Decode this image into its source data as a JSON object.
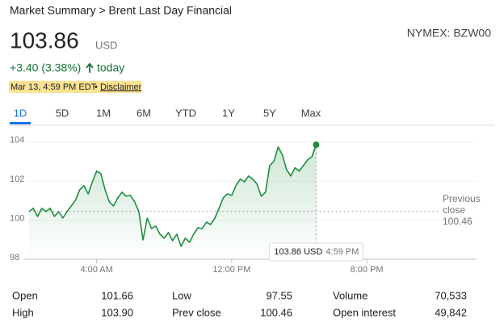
{
  "header": {
    "breadcrumb": "Market Summary > Brent Last Day Financial",
    "price": "103.86",
    "currency": "USD",
    "change": "+3.40 (3.38%)",
    "change_period": "today",
    "timestamp": "Mar 13, 4:59 PM EDT",
    "separator": "•",
    "disclaimer": "Disclaimer",
    "ticker": "NYMEX: BZW00"
  },
  "tabs": [
    "1D",
    "5D",
    "1M",
    "6M",
    "YTD",
    "1Y",
    "5Y",
    "Max"
  ],
  "active_tab": 0,
  "chart_data": {
    "type": "line",
    "color": "#1e8e3e",
    "x": [
      0,
      0.25,
      0.5,
      0.75,
      1,
      1.25,
      1.5,
      1.75,
      2,
      2.25,
      2.5,
      2.75,
      3,
      3.25,
      3.5,
      3.75,
      4,
      4.25,
      4.5,
      4.75,
      5,
      5.25,
      5.5,
      5.75,
      6,
      6.25,
      6.5,
      6.75,
      7,
      7.25,
      7.5,
      7.75,
      8,
      8.25,
      8.5,
      8.75,
      9,
      9.25,
      9.5,
      9.75,
      10,
      10.25,
      10.5,
      10.75,
      11,
      11.25,
      11.5,
      11.75,
      12,
      12.25,
      12.5,
      12.75,
      13,
      13.25,
      13.5,
      13.75,
      14,
      14.25,
      14.5,
      14.75,
      15,
      15.25,
      15.5,
      15.75,
      16,
      16.25,
      16.5,
      16.75,
      17
    ],
    "values": [
      100.44,
      100.61,
      100.19,
      100.61,
      100.44,
      100.61,
      100.19,
      100.44,
      100.11,
      100.44,
      100.73,
      101.02,
      101.56,
      101.77,
      101.35,
      101.97,
      102.51,
      102.39,
      101.56,
      100.94,
      100.73,
      101.14,
      101.43,
      101.23,
      101.27,
      100.94,
      100.44,
      98.99,
      100.11,
      99.57,
      99.7,
      99.28,
      99.08,
      99.37,
      98.95,
      99.28,
      98.66,
      99.08,
      98.87,
      99.28,
      99.61,
      99.57,
      99.9,
      99.78,
      100.11,
      100.61,
      101.14,
      101.35,
      101.27,
      101.77,
      102.1,
      101.97,
      102.26,
      102.1,
      101.85,
      101.23,
      101.43,
      102.8,
      103.01,
      103.75,
      103.34,
      102.59,
      102.26,
      102.68,
      102.51,
      102.8,
      103.09,
      103.25,
      103.86
    ],
    "xlim": [
      0,
      26.5
    ],
    "ylim": [
      98,
      104.2
    ],
    "yticks": [
      98,
      100,
      102,
      104
    ],
    "xticks": [
      {
        "value": 4,
        "label": "4:00 AM"
      },
      {
        "value": 12,
        "label": "12:00 PM"
      },
      {
        "value": 20,
        "label": "8:00 PM"
      }
    ],
    "reference": {
      "label": "Previous close",
      "value": 100.46
    },
    "tooltip": {
      "value": "103.86 USD",
      "time": "4:59 PM"
    }
  },
  "stats": [
    [
      "Open",
      "101.66",
      "Low",
      "97.55",
      "Volume",
      "70,533"
    ],
    [
      "High",
      "103.90",
      "Prev close",
      "100.46",
      "Open interest",
      "49,842"
    ]
  ]
}
